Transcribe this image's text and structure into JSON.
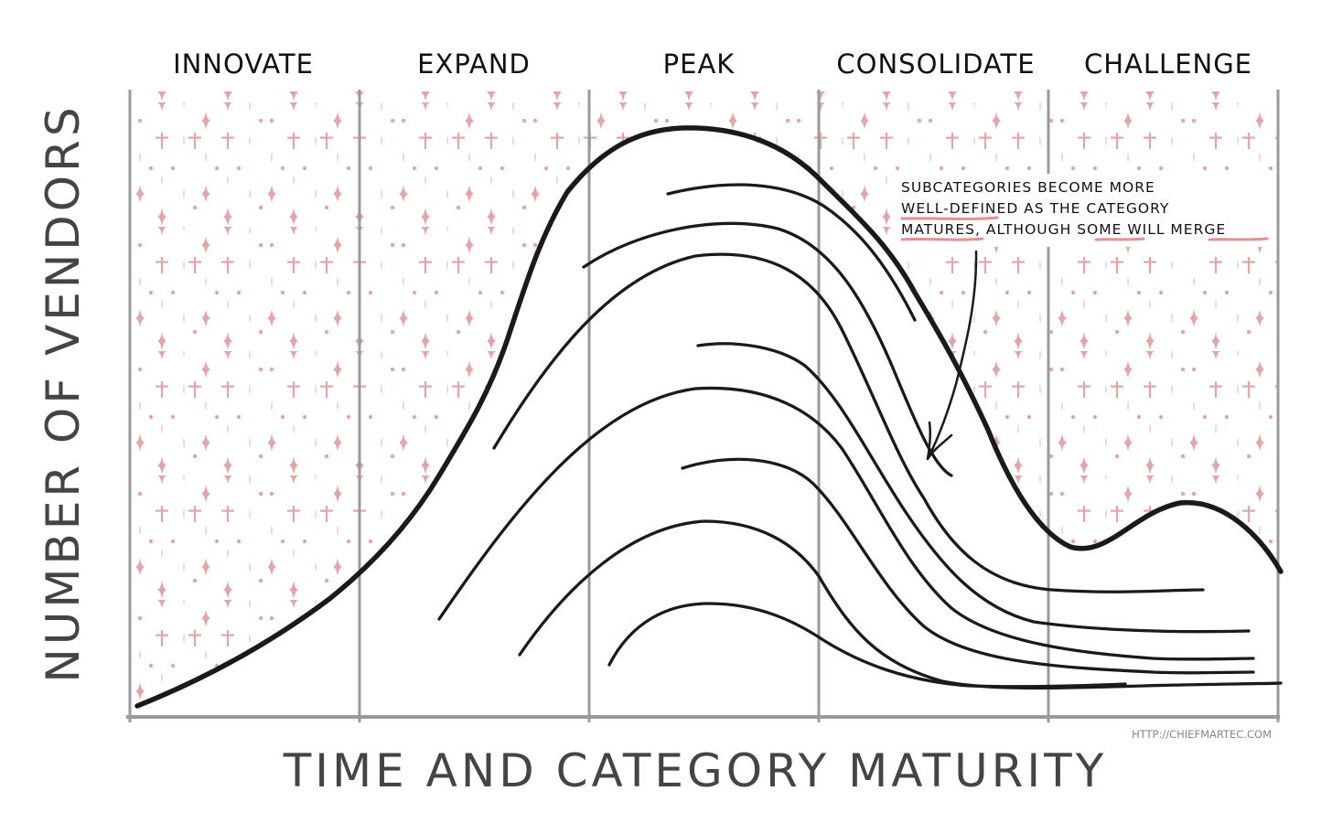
{
  "phases": [
    "INNOVATE",
    "EXPAND",
    "PEAK",
    "CONSOLIDATE",
    "CHALLENGE"
  ],
  "y_axis_label": "NUMBER OF VENDORS",
  "x_axis_label": "TIME AND CATEGORY MATURITY",
  "annotation": {
    "lines": [
      "SUBCATEGORIES BECOME MORE",
      "WELL-DEFINED AS THE CATEGORY",
      "MATURES, ALTHOUGH SOME WILL MERGE"
    ],
    "highlighted_words": [
      "WELL-DEFINED",
      "MATURES,",
      "SOME",
      "MERGE"
    ]
  },
  "source_url": "HTTP://CHIEFMARTEC.COM",
  "colors": {
    "background_pattern": "#e3a6a8",
    "highlight": "#e48f90",
    "curve": "#1a1a1a",
    "divider": "#9a9a9a"
  }
}
